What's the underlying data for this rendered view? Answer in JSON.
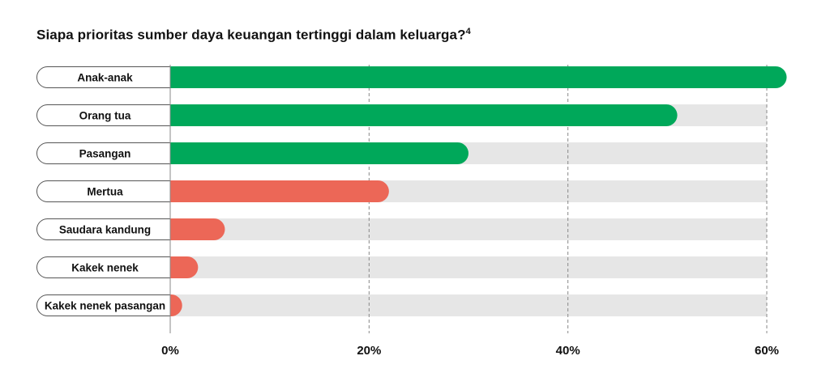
{
  "title": "Siapa prioritas sumber daya keuangan tertinggi dalam keluarga?",
  "title_footnote": "4",
  "colors": {
    "positive": "#00a85a",
    "negative": "#ec6757",
    "track": "#e6e6e6",
    "grid": "#888888",
    "pill_border": "#555555"
  },
  "chart_data": {
    "type": "bar",
    "orientation": "horizontal",
    "categories": [
      "Anak-anak",
      "Orang tua",
      "Pasangan",
      "Mertua",
      "Saudara kandung",
      "Kakek nenek",
      "Kakek nenek pasangan"
    ],
    "values": [
      62,
      51,
      30,
      22,
      5.5,
      2.8,
      1.2
    ],
    "bar_colors": [
      "positive",
      "positive",
      "positive",
      "negative",
      "negative",
      "negative",
      "negative"
    ],
    "xlim": [
      0,
      60
    ],
    "ticks": [
      0,
      20,
      40,
      60
    ],
    "tick_labels": [
      "0%",
      "20%",
      "40%",
      "60%"
    ],
    "grid": "dashed vertical",
    "xlabel": "",
    "ylabel": ""
  }
}
